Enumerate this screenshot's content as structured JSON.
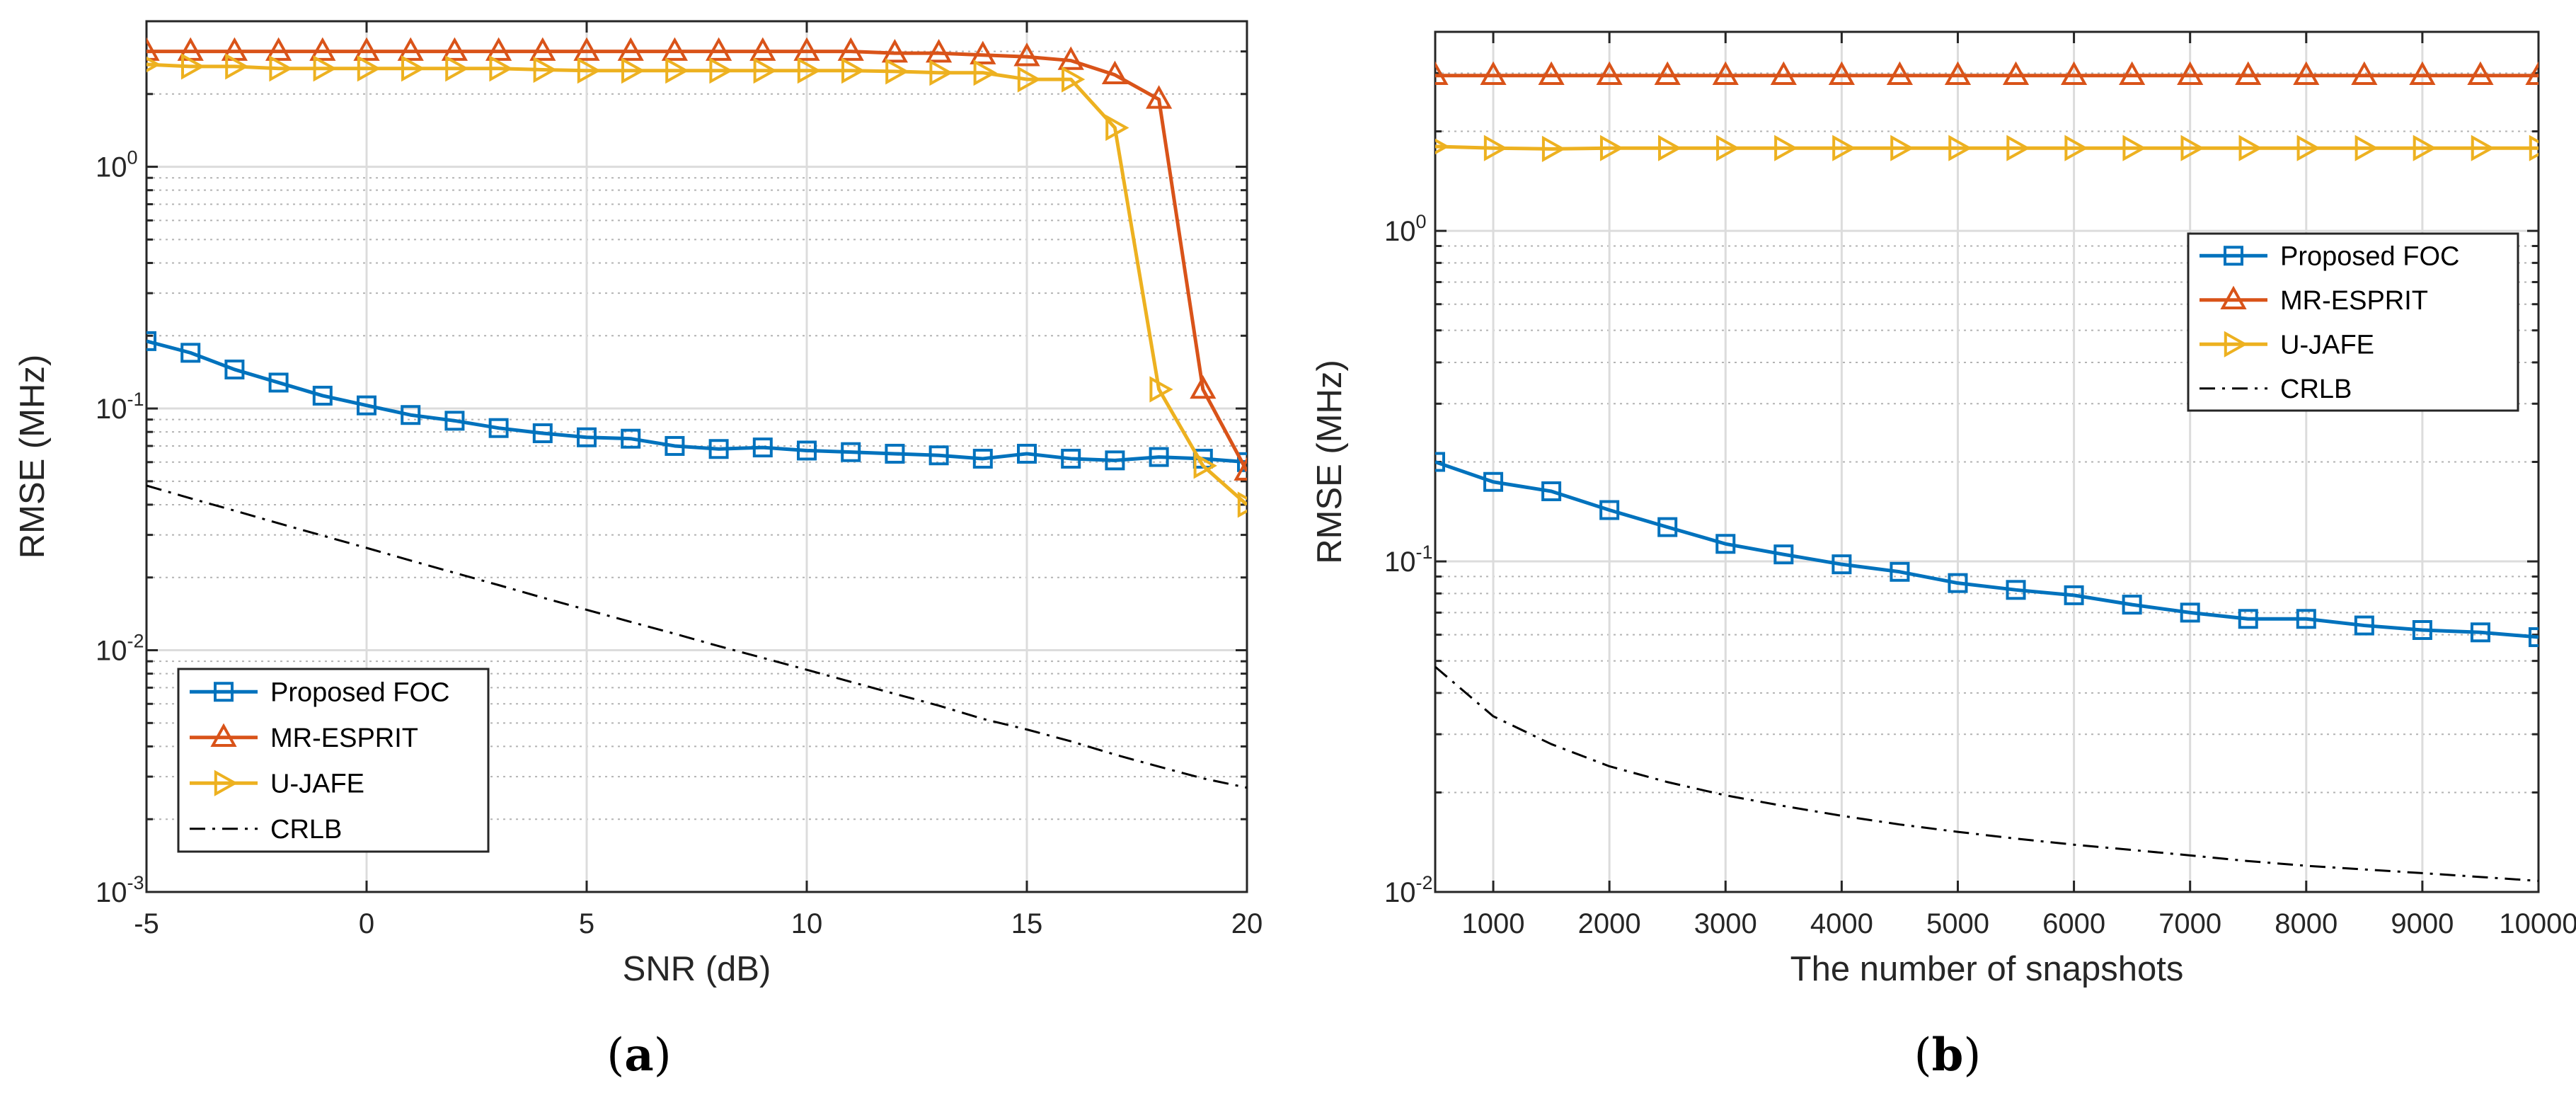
{
  "chart_data": [
    {
      "type": "line",
      "panel_label": "a",
      "xlabel": "SNR (dB)",
      "ylabel": "RMSE (MHz)",
      "yscale": "log",
      "xlim": [
        -5,
        20
      ],
      "ylim": [
        0.001,
        4
      ],
      "xticks": [
        -5,
        0,
        5,
        10,
        15,
        20
      ],
      "yticks": [
        {
          "base": "10",
          "exp": "-3",
          "value": 0.001
        },
        {
          "base": "10",
          "exp": "-2",
          "value": 0.01
        },
        {
          "base": "10",
          "exp": "-1",
          "value": 0.1
        },
        {
          "base": "10",
          "exp": "0",
          "value": 1
        }
      ],
      "grid": true,
      "legend": "bottom-left",
      "x": [
        -5,
        -4,
        -3,
        -2,
        -1,
        0,
        1,
        2,
        3,
        4,
        5,
        6,
        7,
        8,
        9,
        10,
        11,
        12,
        13,
        14,
        15,
        16,
        17,
        18,
        19,
        20
      ],
      "series": [
        {
          "name": "Proposed FOC",
          "color": "#0072BD",
          "marker": "square",
          "values": [
            0.19,
            0.17,
            0.145,
            0.128,
            0.113,
            0.103,
            0.094,
            0.089,
            0.083,
            0.079,
            0.076,
            0.075,
            0.07,
            0.068,
            0.069,
            0.067,
            0.066,
            0.065,
            0.064,
            0.062,
            0.065,
            0.062,
            0.061,
            0.063,
            0.062,
            0.06
          ]
        },
        {
          "name": "MR-ESPRIT",
          "color": "#D95319",
          "marker": "triangle-up",
          "values": [
            3.0,
            3.0,
            3.0,
            3.0,
            3.0,
            3.0,
            3.0,
            3.0,
            3.0,
            3.0,
            3.0,
            3.0,
            3.0,
            3.0,
            3.0,
            3.0,
            3.0,
            2.95,
            2.95,
            2.9,
            2.85,
            2.75,
            2.4,
            1.9,
            0.12,
            0.055
          ]
        },
        {
          "name": "U-JAFE",
          "color": "#EDB120",
          "marker": "triangle-right",
          "values": [
            2.65,
            2.6,
            2.6,
            2.55,
            2.55,
            2.55,
            2.55,
            2.55,
            2.55,
            2.52,
            2.5,
            2.5,
            2.5,
            2.5,
            2.5,
            2.5,
            2.5,
            2.48,
            2.45,
            2.45,
            2.3,
            2.3,
            1.45,
            0.12,
            0.058,
            0.04
          ]
        },
        {
          "name": "CRLB",
          "color": "#000000",
          "marker": "none",
          "dash": "dashdot",
          "values": [
            0.048,
            0.0425,
            0.0378,
            0.0335,
            0.0298,
            0.0265,
            0.0235,
            0.0209,
            0.0186,
            0.0165,
            0.0147,
            0.0131,
            0.0117,
            0.0104,
            0.0093,
            0.0083,
            0.0074,
            0.0066,
            0.0059,
            0.0052,
            0.0047,
            0.0042,
            0.0037,
            0.0033,
            0.00295,
            0.0027
          ]
        }
      ]
    },
    {
      "type": "line",
      "panel_label": "b",
      "xlabel": "The number of snapshots",
      "ylabel": "RMSE (MHz)",
      "yscale": "log",
      "xlim": [
        500,
        10000
      ],
      "ylim": [
        0.01,
        4
      ],
      "xticks": [
        1000,
        2000,
        3000,
        4000,
        5000,
        6000,
        7000,
        8000,
        9000,
        10000
      ],
      "yticks": [
        {
          "base": "10",
          "exp": "-2",
          "value": 0.01
        },
        {
          "base": "10",
          "exp": "-1",
          "value": 0.1
        },
        {
          "base": "10",
          "exp": "0",
          "value": 1
        }
      ],
      "grid": true,
      "legend": "top-right",
      "x": [
        500,
        1000,
        1500,
        2000,
        2500,
        3000,
        3500,
        4000,
        4500,
        5000,
        5500,
        6000,
        6500,
        7000,
        7500,
        8000,
        8500,
        9000,
        9500,
        10000
      ],
      "series": [
        {
          "name": "Proposed FOC",
          "color": "#0072BD",
          "marker": "square",
          "values": [
            0.2,
            0.174,
            0.163,
            0.143,
            0.127,
            0.113,
            0.105,
            0.098,
            0.093,
            0.086,
            0.082,
            0.079,
            0.074,
            0.07,
            0.067,
            0.067,
            0.064,
            0.062,
            0.061,
            0.059
          ]
        },
        {
          "name": "MR-ESPRIT",
          "color": "#D95319",
          "marker": "triangle-up",
          "values": [
            2.95,
            2.95,
            2.95,
            2.95,
            2.95,
            2.95,
            2.95,
            2.95,
            2.95,
            2.95,
            2.95,
            2.95,
            2.95,
            2.95,
            2.95,
            2.95,
            2.95,
            2.95,
            2.95,
            2.95
          ]
        },
        {
          "name": "U-JAFE",
          "color": "#EDB120",
          "marker": "triangle-right",
          "values": [
            1.8,
            1.78,
            1.77,
            1.78,
            1.78,
            1.78,
            1.78,
            1.78,
            1.78,
            1.78,
            1.78,
            1.78,
            1.78,
            1.78,
            1.78,
            1.78,
            1.78,
            1.78,
            1.78,
            1.78
          ]
        },
        {
          "name": "CRLB",
          "color": "#000000",
          "marker": "none",
          "dash": "dashdot",
          "values": [
            0.048,
            0.034,
            0.028,
            0.024,
            0.0215,
            0.0196,
            0.0182,
            0.017,
            0.016,
            0.0152,
            0.0145,
            0.0139,
            0.0134,
            0.0129,
            0.0124,
            0.012,
            0.0117,
            0.0114,
            0.0111,
            0.0108
          ]
        }
      ]
    }
  ]
}
